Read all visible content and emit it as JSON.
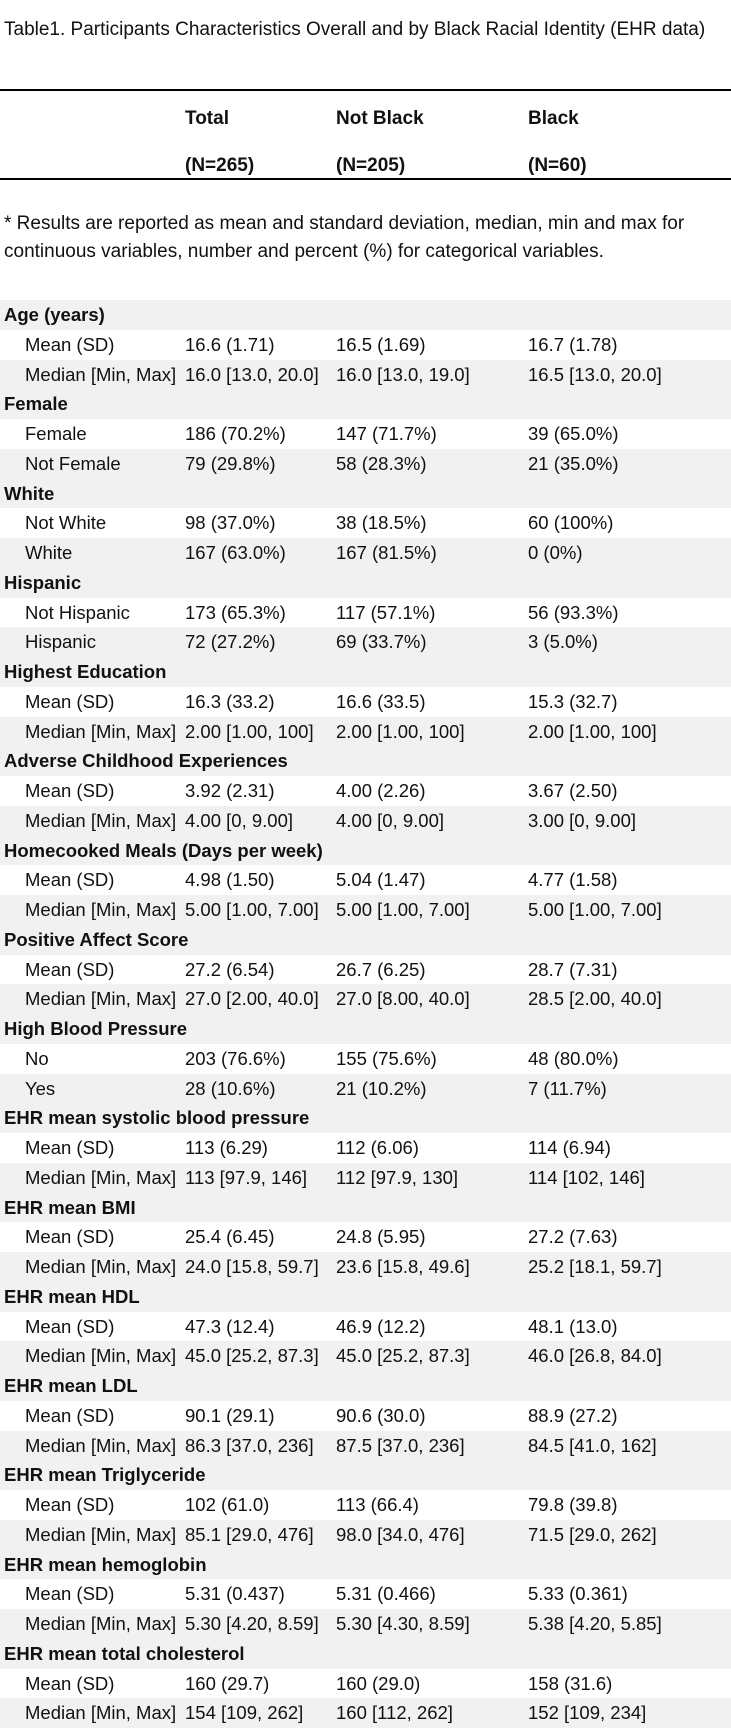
{
  "caption": "Table1. Participants Characteristics Overall and by Black Racial Identity (EHR data)",
  "columns": [
    {
      "name": "Total",
      "n": "(N=265)"
    },
    {
      "name": "Not Black",
      "n": "(N=205)"
    },
    {
      "name": "Black",
      "n": "(N=60)"
    }
  ],
  "note": "* Results are reported as mean and standard deviation, median, min and max for continuous variables, number and percent (%) for categorical variables.",
  "sections": [
    {
      "title": "Age (years)",
      "rows": [
        {
          "label": "Mean (SD)",
          "values": [
            "16.6 (1.71)",
            "16.5 (1.69)",
            "16.7 (1.78)"
          ]
        },
        {
          "label": "Median [Min, Max]",
          "values": [
            "16.0 [13.0, 20.0]",
            "16.0 [13.0, 19.0]",
            "16.5 [13.0, 20.0]"
          ]
        }
      ]
    },
    {
      "title": "Female",
      "rows": [
        {
          "label": "Female",
          "values": [
            "186 (70.2%)",
            "147 (71.7%)",
            "39 (65.0%)"
          ]
        },
        {
          "label": "Not Female",
          "values": [
            "79 (29.8%)",
            "58 (28.3%)",
            "21 (35.0%)"
          ]
        }
      ]
    },
    {
      "title": "White",
      "rows": [
        {
          "label": "Not White",
          "values": [
            "98 (37.0%)",
            "38 (18.5%)",
            "60 (100%)"
          ]
        },
        {
          "label": "White",
          "values": [
            "167 (63.0%)",
            "167 (81.5%)",
            "0 (0%)"
          ]
        }
      ]
    },
    {
      "title": "Hispanic",
      "rows": [
        {
          "label": "Not Hispanic",
          "values": [
            "173 (65.3%)",
            "117 (57.1%)",
            "56 (93.3%)"
          ]
        },
        {
          "label": "Hispanic",
          "values": [
            "72 (27.2%)",
            "69 (33.7%)",
            "3 (5.0%)"
          ]
        }
      ]
    },
    {
      "title": "Highest Education",
      "rows": [
        {
          "label": "Mean (SD)",
          "values": [
            "16.3 (33.2)",
            "16.6 (33.5)",
            "15.3 (32.7)"
          ]
        },
        {
          "label": "Median [Min, Max]",
          "values": [
            "2.00 [1.00, 100]",
            "2.00 [1.00, 100]",
            "2.00 [1.00, 100]"
          ]
        }
      ]
    },
    {
      "title": "Adverse Childhood Experiences",
      "rows": [
        {
          "label": "Mean (SD)",
          "values": [
            "3.92 (2.31)",
            "4.00 (2.26)",
            "3.67 (2.50)"
          ]
        },
        {
          "label": "Median [Min, Max]",
          "values": [
            "4.00 [0, 9.00]",
            "4.00 [0, 9.00]",
            "3.00 [0, 9.00]"
          ]
        }
      ]
    },
    {
      "title": "Homecooked Meals (Days per week)",
      "rows": [
        {
          "label": "Mean (SD)",
          "values": [
            "4.98 (1.50)",
            "5.04 (1.47)",
            "4.77 (1.58)"
          ]
        },
        {
          "label": "Median [Min, Max]",
          "values": [
            "5.00 [1.00, 7.00]",
            "5.00 [1.00, 7.00]",
            "5.00 [1.00, 7.00]"
          ]
        }
      ]
    },
    {
      "title": "Positive Affect Score",
      "rows": [
        {
          "label": "Mean (SD)",
          "values": [
            "27.2 (6.54)",
            "26.7 (6.25)",
            "28.7 (7.31)"
          ]
        },
        {
          "label": "Median [Min, Max]",
          "values": [
            "27.0 [2.00, 40.0]",
            "27.0 [8.00, 40.0]",
            "28.5 [2.00, 40.0]"
          ]
        }
      ]
    },
    {
      "title": "High Blood Pressure",
      "rows": [
        {
          "label": "No",
          "values": [
            "203 (76.6%)",
            "155 (75.6%)",
            "48 (80.0%)"
          ]
        },
        {
          "label": "Yes",
          "values": [
            "28 (10.6%)",
            "21 (10.2%)",
            "7 (11.7%)"
          ]
        }
      ]
    },
    {
      "title": "EHR mean systolic blood pressure",
      "rows": [
        {
          "label": "Mean (SD)",
          "values": [
            "113 (6.29)",
            "112 (6.06)",
            "114 (6.94)"
          ]
        },
        {
          "label": "Median [Min, Max]",
          "values": [
            "113 [97.9, 146]",
            "112 [97.9, 130]",
            "114 [102, 146]"
          ]
        }
      ]
    },
    {
      "title": "EHR mean BMI",
      "rows": [
        {
          "label": "Mean (SD)",
          "values": [
            "25.4 (6.45)",
            "24.8 (5.95)",
            "27.2 (7.63)"
          ]
        },
        {
          "label": "Median [Min, Max]",
          "values": [
            "24.0 [15.8, 59.7]",
            "23.6 [15.8, 49.6]",
            "25.2 [18.1, 59.7]"
          ]
        }
      ]
    },
    {
      "title": "EHR mean HDL",
      "rows": [
        {
          "label": "Mean (SD)",
          "values": [
            "47.3 (12.4)",
            "46.9 (12.2)",
            "48.1 (13.0)"
          ]
        },
        {
          "label": "Median [Min, Max]",
          "values": [
            "45.0 [25.2, 87.3]",
            "45.0 [25.2, 87.3]",
            "46.0 [26.8, 84.0]"
          ]
        }
      ]
    },
    {
      "title": "EHR mean LDL",
      "rows": [
        {
          "label": "Mean (SD)",
          "values": [
            "90.1 (29.1)",
            "90.6 (30.0)",
            "88.9 (27.2)"
          ]
        },
        {
          "label": "Median [Min, Max]",
          "values": [
            "86.3 [37.0, 236]",
            "87.5 [37.0, 236]",
            "84.5 [41.0, 162]"
          ]
        }
      ]
    },
    {
      "title": "EHR mean Triglyceride",
      "rows": [
        {
          "label": "Mean (SD)",
          "values": [
            "102 (61.0)",
            "113 (66.4)",
            "79.8 (39.8)"
          ]
        },
        {
          "label": "Median [Min, Max]",
          "values": [
            "85.1 [29.0, 476]",
            "98.0 [34.0, 476]",
            "71.5 [29.0, 262]"
          ]
        }
      ]
    },
    {
      "title": "EHR mean hemoglobin",
      "rows": [
        {
          "label": "Mean (SD)",
          "values": [
            "5.31 (0.437)",
            "5.31 (0.466)",
            "5.33 (0.361)"
          ]
        },
        {
          "label": "Median [Min, Max]",
          "values": [
            "5.30 [4.20, 8.59]",
            "5.30 [4.30, 8.59]",
            "5.38 [4.20, 5.85]"
          ]
        }
      ]
    },
    {
      "title": "EHR mean total cholesterol",
      "rows": [
        {
          "label": "Mean (SD)",
          "values": [
            "160 (29.7)",
            "160 (29.0)",
            "158 (31.6)"
          ]
        },
        {
          "label": "Median [Min, Max]",
          "values": [
            "154 [109, 262]",
            "160 [112, 262]",
            "152 [109, 234]"
          ]
        }
      ]
    }
  ]
}
